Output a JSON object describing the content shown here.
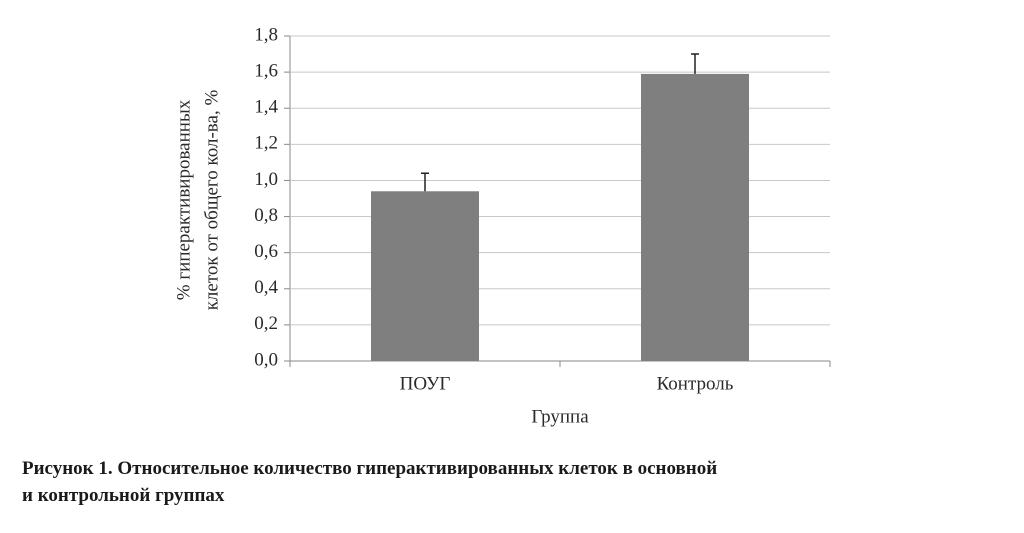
{
  "chart_data": {
    "type": "bar",
    "categories": [
      "ПОУГ",
      "Контроль"
    ],
    "values": [
      0.94,
      1.59
    ],
    "errors": [
      0.1,
      0.11
    ],
    "color": "#7f7f7f",
    "ylim": [
      0,
      1.8
    ],
    "yticks": [
      {
        "value": 0,
        "label": "0,0"
      },
      {
        "value": 0.2,
        "label": "0,2"
      },
      {
        "value": 0.4,
        "label": "0,4"
      },
      {
        "value": 0.6,
        "label": "0,6"
      },
      {
        "value": 0.8,
        "label": "0,8"
      },
      {
        "value": 1.0,
        "label": "1,0"
      },
      {
        "value": 1.2,
        "label": "1,2"
      },
      {
        "value": 1.4,
        "label": "1,4"
      },
      {
        "value": 1.6,
        "label": "1,6"
      },
      {
        "value": 1.8,
        "label": "1,8"
      }
    ],
    "grid": true,
    "ylabel": [
      "% гиперактивированных",
      "клеток от общего кол-ва, %"
    ],
    "xlabel": "Группа",
    "caption": [
      "Рисунок 1. Относительное количество гиперактивированных клеток в основной",
      "и контрольной группах"
    ]
  }
}
